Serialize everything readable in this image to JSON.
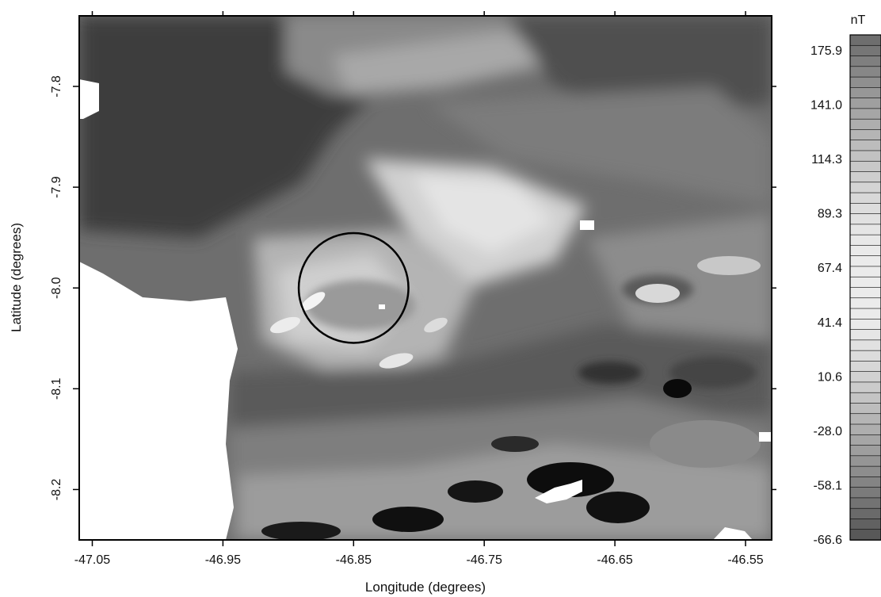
{
  "map": {
    "x_axis_label": "Longitude (degrees)",
    "y_axis_label": "Latitude (degrees)",
    "x_ticks": [
      "-47.05",
      "-46.95",
      "-46.85",
      "-46.75",
      "-46.65",
      "-46.55"
    ],
    "y_ticks": [
      "-7.8",
      "-7.9",
      "-8.0",
      "-8.1",
      "-8.2"
    ],
    "lon_range": [
      -47.06,
      -46.53
    ],
    "lat_range": [
      -8.25,
      -7.73
    ],
    "circle_center": {
      "lon": -46.85,
      "lat": -8.0
    },
    "circle_radius_deg": 0.054,
    "no_data_color": "#ffffff",
    "palette": "grayscale"
  },
  "colorbar": {
    "unit": "nT",
    "labels": [
      "175.9",
      "141.0",
      "114.3",
      "89.3",
      "67.4",
      "41.4",
      "10.6",
      "-28.0",
      "-58.1",
      "-66.6"
    ],
    "bands": 48
  }
}
